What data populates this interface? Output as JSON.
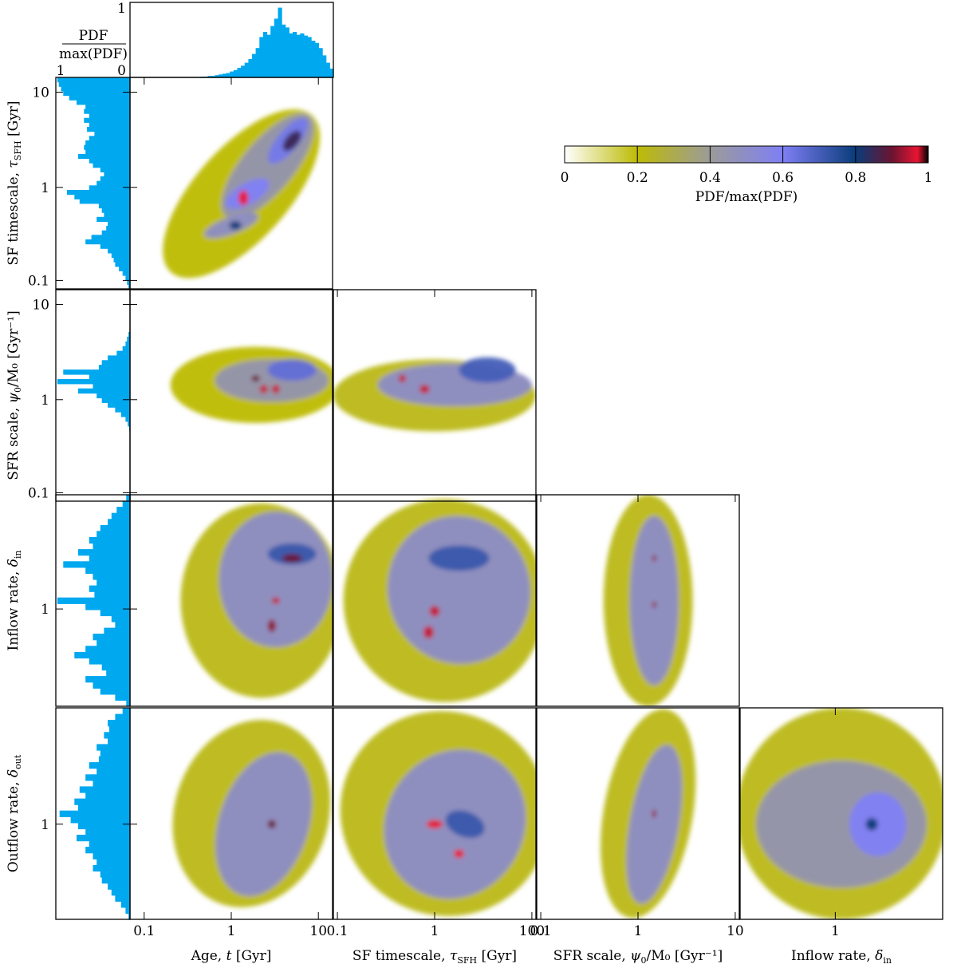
{
  "chart_data": {
    "type": "heatmap",
    "description_style": "corner plot",
    "colorbar": {
      "label": "PDF/max(PDF)",
      "ticks": [
        "0",
        "0.2",
        "0.4",
        "0.6",
        "0.8",
        "1"
      ],
      "range": [
        0,
        1
      ],
      "stops": [
        {
          "v": 0.0,
          "color": "#ffffff"
        },
        {
          "v": 0.2,
          "color": "#bdbb05"
        },
        {
          "v": 0.4,
          "color": "#9b9b9a"
        },
        {
          "v": 0.6,
          "color": "#7f7ff5"
        },
        {
          "v": 0.8,
          "color": "#0a3c7a"
        },
        {
          "v": 0.9,
          "color": "#6a1430"
        },
        {
          "v": 0.97,
          "color": "#e81432"
        },
        {
          "v": 1.0,
          "color": "#000000"
        }
      ]
    },
    "hist_color": "#00a8f0",
    "top_hist": {
      "label_num": "PDF",
      "label_den": "max(PDF)",
      "yticks": [
        "1",
        "0"
      ],
      "xtick_left": "1"
    },
    "params": [
      {
        "label": "Age, ",
        "sym": "t",
        "sub": "",
        "unit": " [Gyr]",
        "ticks": [
          "0.1",
          "1",
          "10"
        ]
      },
      {
        "label": "SF timescale, ",
        "sym": "τ",
        "sub": "SFH",
        "unit": " [Gyr]",
        "ticks": [
          "0.1",
          "1",
          "100"
        ]
      },
      {
        "label": "SFR scale, ",
        "sym": "ψ",
        "sub": "0",
        "unit": "/M₀ [Gyr⁻¹]",
        "ticks": [
          "0.1",
          "1",
          "10"
        ]
      },
      {
        "label": "Inflow rate, ",
        "sym": "δ",
        "sub": "in",
        "unit": "",
        "ticks": [
          "1"
        ]
      },
      {
        "label": "Outflow rate, ",
        "sym": "δ",
        "sub": "out",
        "unit": "",
        "ticks": [
          "1"
        ]
      }
    ],
    "row_labels": [
      {
        "label": "SF timescale, ",
        "sym": "τ",
        "sub": "SFH",
        "unit": " [Gyr]",
        "ticks": [
          "10",
          "1",
          "0.1"
        ]
      },
      {
        "label": "SFR scale, ",
        "sym": "ψ",
        "sub": "0",
        "unit": "/M₀ [Gyr⁻¹]",
        "ticks": [
          "10",
          "1",
          "0.1"
        ]
      },
      {
        "label": "Inflow rate, ",
        "sym": "δ",
        "sub": "in",
        "unit": "",
        "ticks": [
          "1"
        ]
      },
      {
        "label": "Outflow rate, ",
        "sym": "δ",
        "sub": "out",
        "unit": "",
        "ticks": [
          "1"
        ]
      }
    ],
    "marginals": {
      "age": [
        0,
        0,
        0,
        0,
        0,
        0,
        0,
        0,
        0,
        0,
        0,
        0,
        0,
        0,
        0,
        0,
        0,
        0,
        0,
        0.01,
        0.01,
        0.02,
        0.02,
        0.03,
        0.04,
        0.05,
        0.06,
        0.08,
        0.1,
        0.13,
        0.16,
        0.2,
        0.25,
        0.32,
        0.4,
        0.55,
        0.62,
        0.58,
        0.7,
        0.8,
        0.95,
        0.72,
        0.68,
        0.6,
        0.62,
        0.58,
        0.6,
        0.57,
        0.55,
        0.5,
        0.47,
        0.4,
        0.3,
        0.2,
        0.12
      ],
      "tau": [
        0.98,
        0.96,
        0.93,
        0.9,
        0.82,
        0.72,
        0.6,
        0.62,
        0.55,
        0.62,
        0.55,
        0.58,
        0.48,
        0.55,
        0.6,
        0.62,
        0.6,
        0.7,
        0.55,
        0.5,
        0.4,
        0.35,
        0.4,
        0.45,
        0.55,
        0.85,
        0.75,
        0.68,
        0.42,
        0.38,
        0.35,
        0.45,
        0.3,
        0.32,
        0.38,
        0.52,
        0.6,
        0.4,
        0.3,
        0.25,
        0.22,
        0.2,
        0.15,
        0.1,
        0.06,
        0.04,
        0.02
      ],
      "sfr": [
        0,
        0,
        0,
        0,
        0,
        0,
        0,
        0,
        0,
        0.02,
        0.04,
        0.06,
        0.1,
        0.18,
        0.3,
        0.38,
        0.42,
        0.9,
        0.55,
        0.98,
        0.5,
        0.7,
        0.45,
        0.38,
        0.3,
        0.2,
        0.12,
        0.06,
        0.03,
        0.01,
        0,
        0,
        0,
        0,
        0,
        0,
        0,
        0,
        0,
        0,
        0,
        0,
        0,
        0,
        0
      ],
      "inflow": [
        0.05,
        0.1,
        0.18,
        0.25,
        0.3,
        0.4,
        0.45,
        0.55,
        0.5,
        0.7,
        0.55,
        0.9,
        0.6,
        0.5,
        0.45,
        0.55,
        0.48,
        0.98,
        0.6,
        0.4,
        0.25,
        0.2,
        0.35,
        0.5,
        0.45,
        0.6,
        0.75,
        0.55,
        0.38,
        0.32,
        0.6,
        0.5,
        0.4,
        0.2,
        0.05
      ],
      "outflow": [
        0.1,
        0.2,
        0.3,
        0.28,
        0.35,
        0.3,
        0.45,
        0.4,
        0.42,
        0.55,
        0.45,
        0.6,
        0.5,
        0.68,
        0.6,
        0.75,
        0.7,
        0.95,
        0.8,
        0.7,
        0.6,
        0.72,
        0.55,
        0.6,
        0.5,
        0.45,
        0.5,
        0.4,
        0.38,
        0.3,
        0.25,
        0.2,
        0.12,
        0.06,
        0.02
      ]
    }
  }
}
